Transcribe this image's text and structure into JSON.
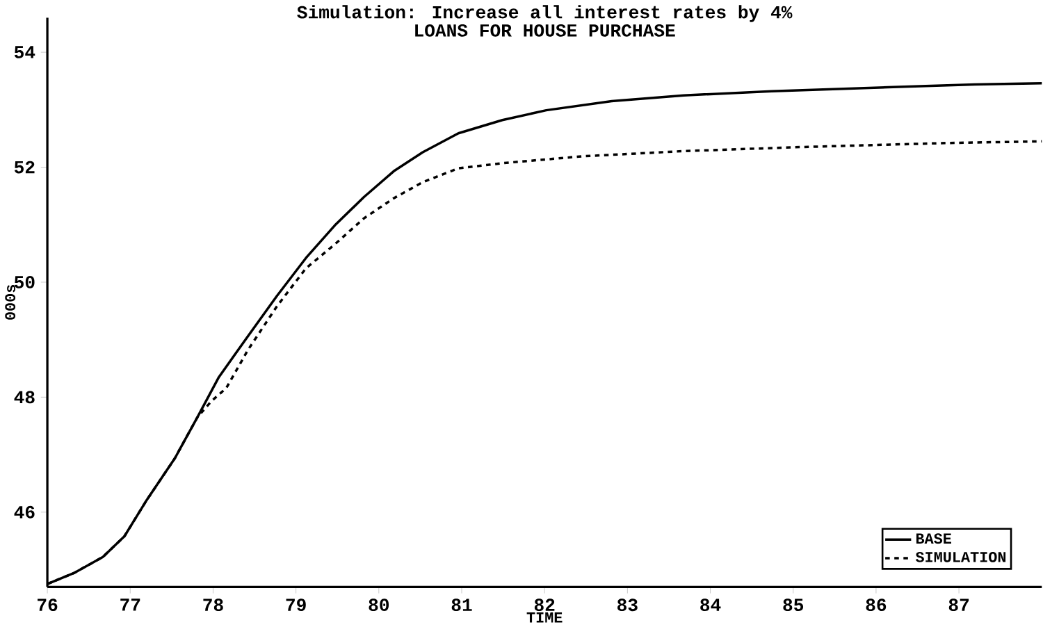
{
  "chart_data": {
    "type": "line",
    "title": "Simulation: Increase all interest rates by 4%",
    "subtitle": "LOANS FOR HOUSE PURCHASE",
    "xlabel": "TIME",
    "ylabel": "000s",
    "xlim": [
      76,
      88
    ],
    "xticks": [
      76,
      77,
      78,
      79,
      80,
      81,
      82,
      83,
      84,
      85,
      86,
      87
    ],
    "ylim": [
      44.7,
      54.6
    ],
    "yticks": [
      46,
      48,
      50,
      52,
      54
    ],
    "legend": "bottom right",
    "grid": false,
    "series": [
      {
        "name": "BASE",
        "color": "#000000",
        "line_style": "solid",
        "x": [
          76,
          76.32,
          76.67,
          76.93,
          77.19,
          77.54,
          77.81,
          78.07,
          78.42,
          78.77,
          79.12,
          79.47,
          79.82,
          80.18,
          80.53,
          80.96,
          81.49,
          82.02,
          82.81,
          83.68,
          84.74,
          86.14,
          87.19,
          88
        ],
        "values": [
          44.75,
          44.94,
          45.22,
          45.58,
          46.19,
          46.94,
          47.65,
          48.35,
          49.06,
          49.76,
          50.42,
          50.99,
          51.48,
          51.93,
          52.26,
          52.59,
          52.82,
          52.99,
          53.15,
          53.25,
          53.32,
          53.39,
          53.44,
          53.46
        ]
      },
      {
        "name": "SIMULATION",
        "color": "#000000",
        "line_style": "dashed",
        "x": [
          76,
          76.32,
          76.67,
          76.93,
          77.19,
          77.54,
          77.81,
          77.98,
          78.16,
          78.42,
          78.77,
          79.12,
          79.47,
          79.82,
          80.18,
          80.53,
          80.96,
          81.49,
          82.46,
          83.68,
          85.09,
          86.84,
          88
        ],
        "values": [
          44.75,
          44.94,
          45.22,
          45.58,
          46.19,
          46.94,
          47.65,
          47.93,
          48.16,
          48.82,
          49.58,
          50.24,
          50.66,
          51.11,
          51.46,
          51.74,
          51.98,
          52.07,
          52.19,
          52.28,
          52.35,
          52.42,
          52.45
        ]
      }
    ]
  }
}
